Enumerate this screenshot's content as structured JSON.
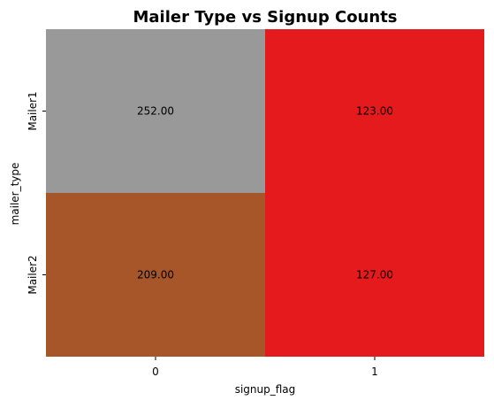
{
  "chart_data": {
    "type": "heatmap",
    "title": "Mailer Type vs Signup Counts",
    "xlabel": "signup_flag",
    "ylabel": "mailer_type",
    "x_categories": [
      "0",
      "1"
    ],
    "y_categories": [
      "Mailer1",
      "Mailer2"
    ],
    "values": [
      [
        252,
        123
      ],
      [
        209,
        127
      ]
    ],
    "value_labels": [
      [
        "252.00",
        "123.00"
      ],
      [
        "209.00",
        "127.00"
      ]
    ],
    "cell_colors": [
      [
        "#999999",
        "#e41a1c"
      ],
      [
        "#a65628",
        "#e41a1c"
      ]
    ],
    "colorbar": false,
    "grid": false
  }
}
